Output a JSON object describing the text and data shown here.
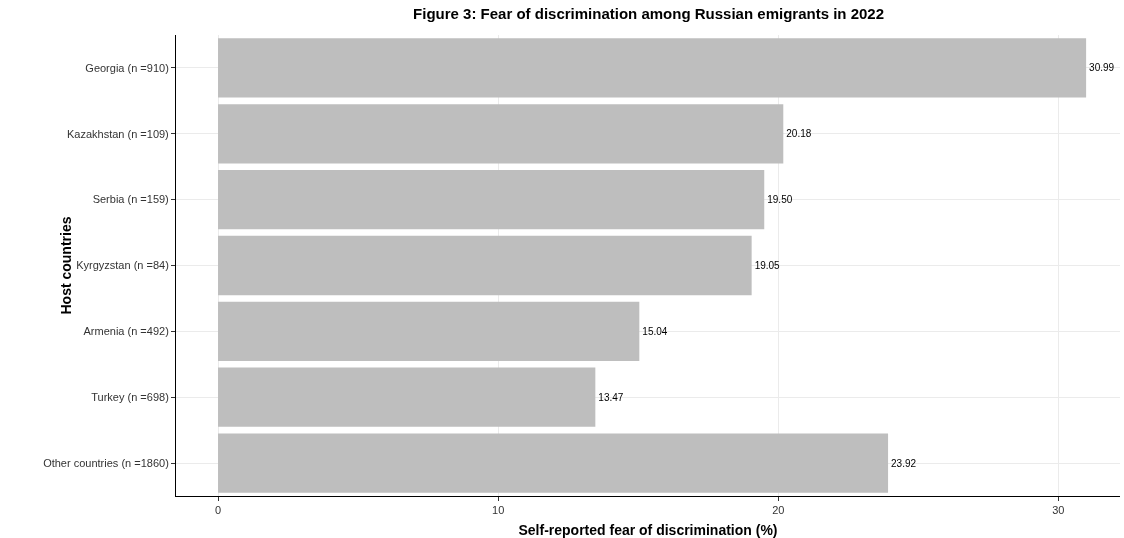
{
  "chart_data": {
    "type": "bar",
    "orientation": "horizontal",
    "title": "Figure 3: Fear of discrimination among Russian emigrants in 2022",
    "xlabel": "Self-reported fear of discrimination (%)",
    "ylabel": "Host countries",
    "categories": [
      "Georgia (n =910)",
      "Kazakhstan (n =109)",
      "Serbia (n =159)",
      "Kyrgyzstan (n =84)",
      "Armenia (n =492)",
      "Turkey (n =698)",
      "Other countries (n =1860)"
    ],
    "values": [
      30.99,
      20.18,
      19.5,
      19.05,
      15.04,
      13.47,
      23.92
    ],
    "value_labels": [
      "30.99",
      "20.18",
      "19.50",
      "19.05",
      "15.04",
      "13.47",
      "23.92"
    ],
    "color": "#bebebe",
    "xlim": [
      -1.5,
      32.2
    ],
    "xticks": [
      0,
      10,
      20,
      30
    ],
    "grid": true
  }
}
